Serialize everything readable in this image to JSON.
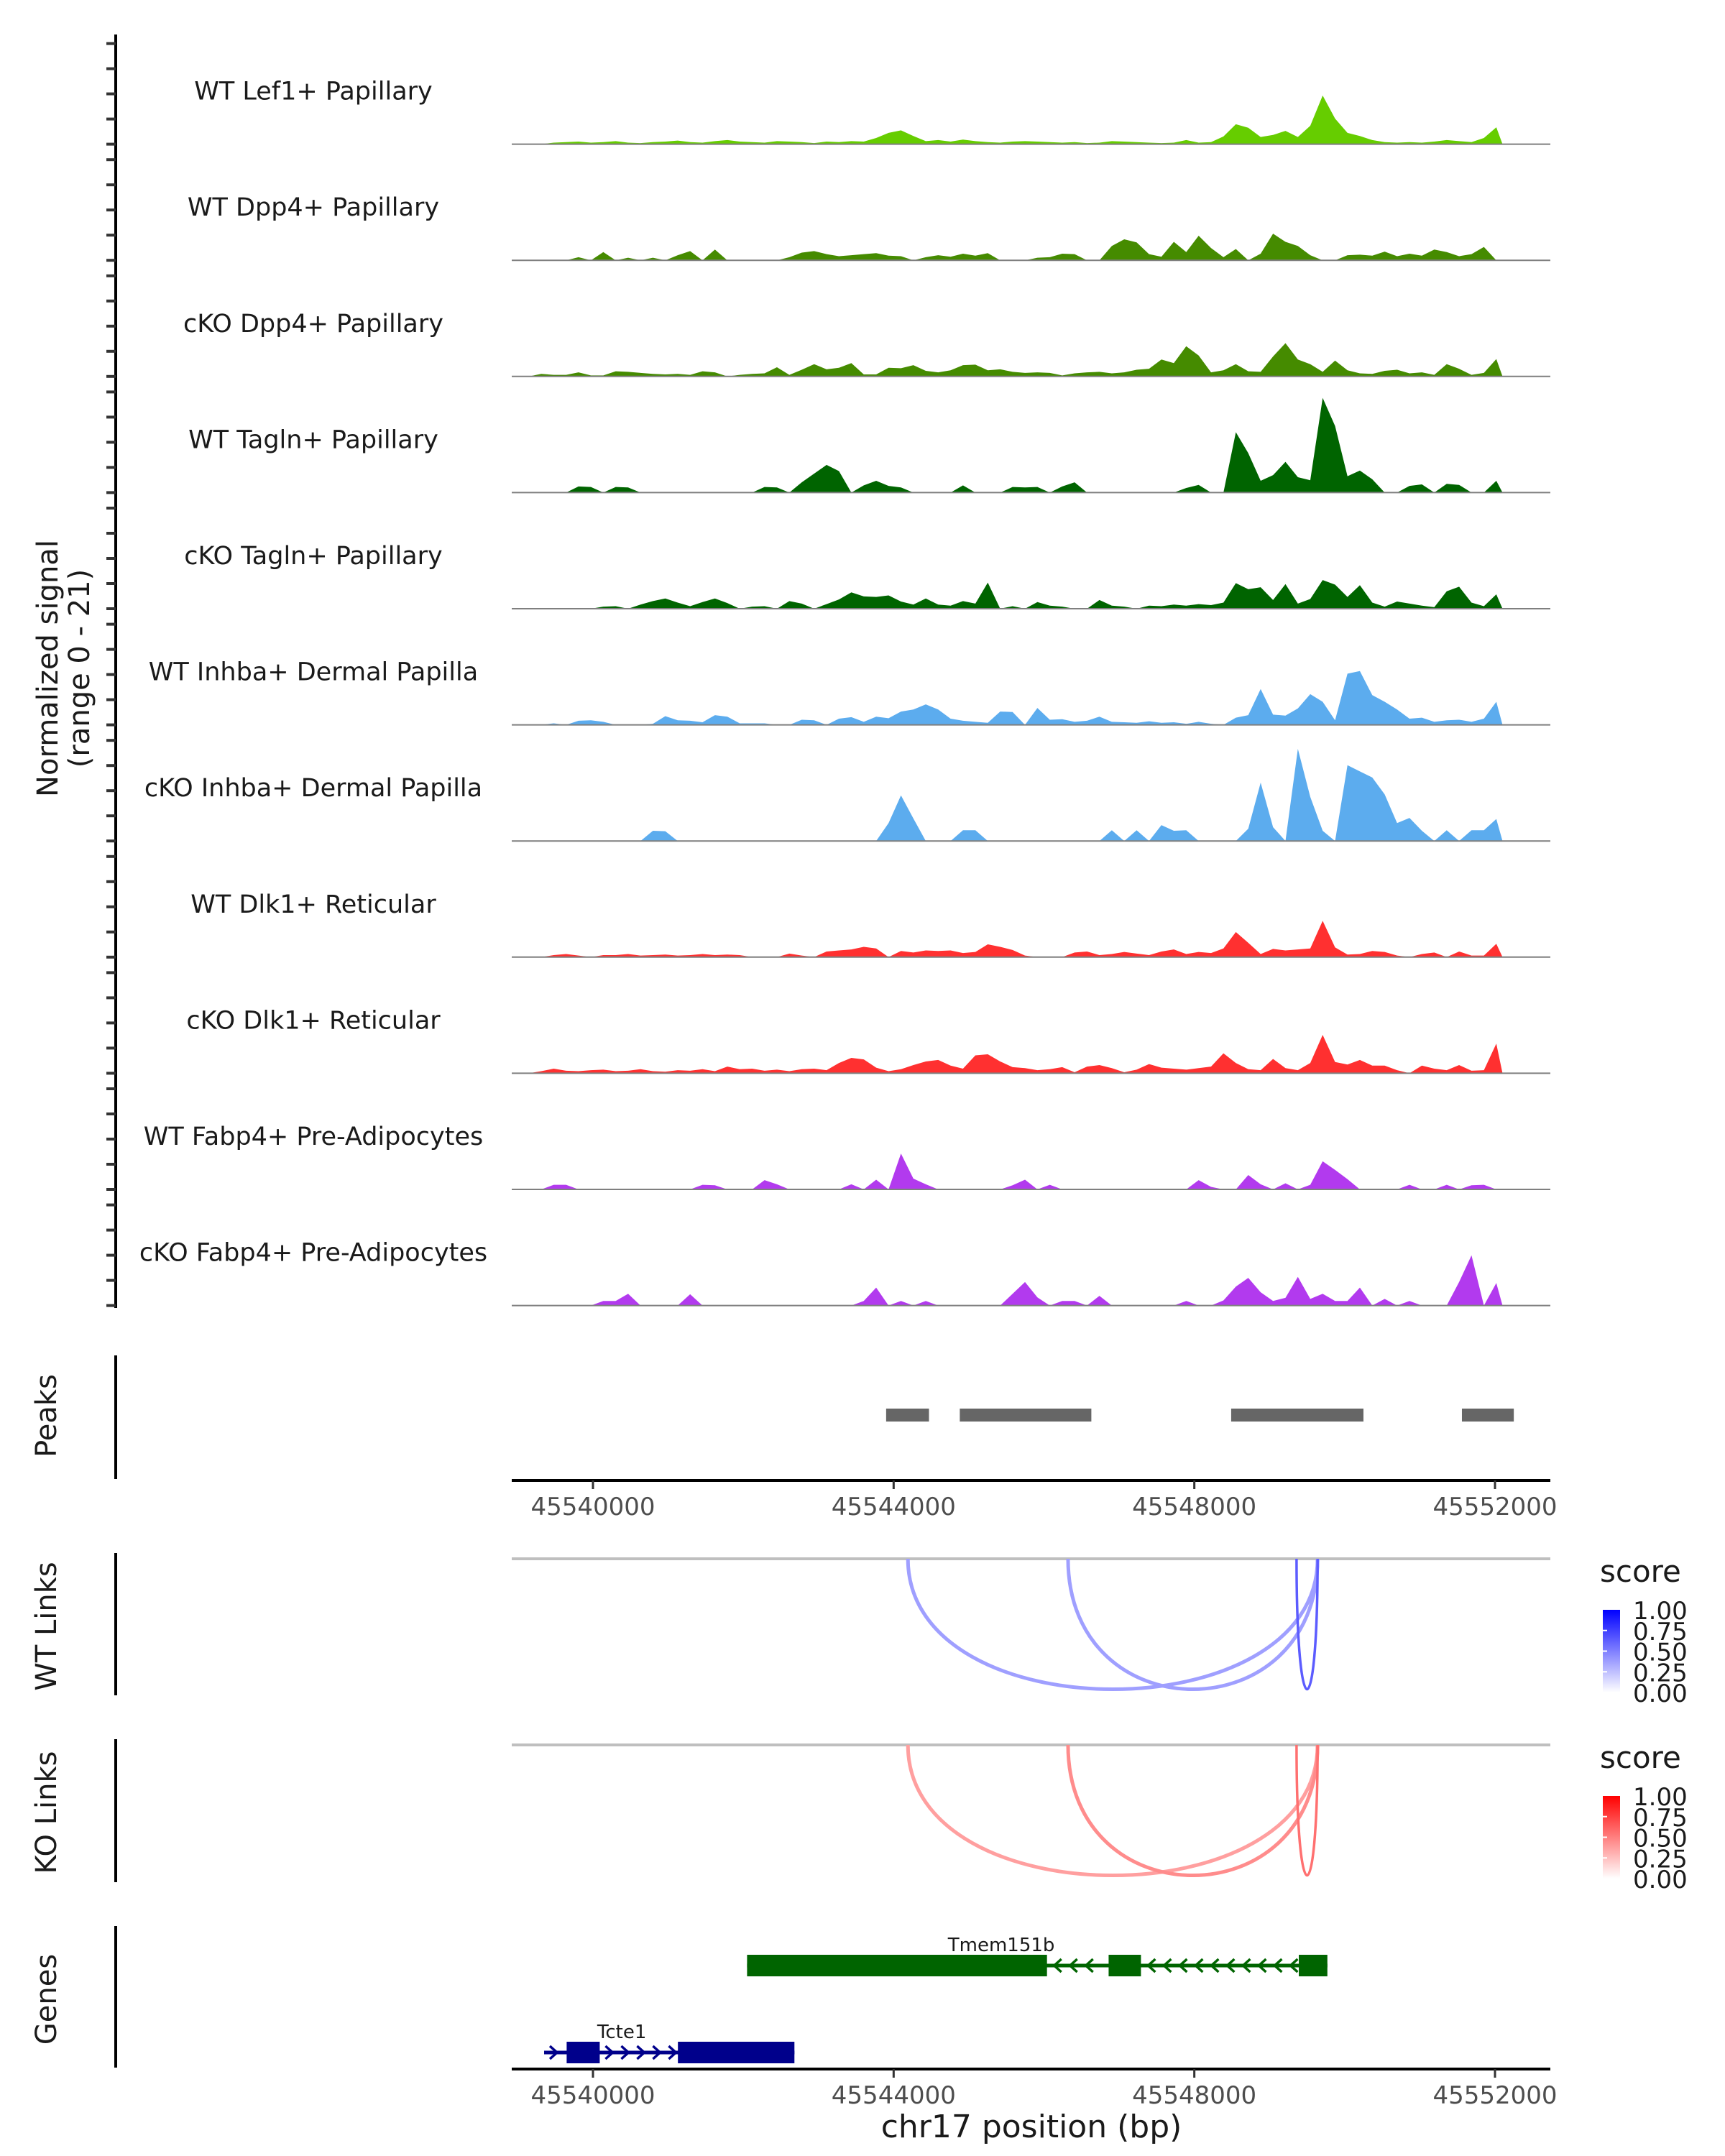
{
  "chart_data": {
    "type": "area",
    "title": "",
    "region": {
      "chrom": "chr17",
      "start": 45538900,
      "end": 45552700
    },
    "bin_size_bp": 165,
    "signal_axis_label": [
      "Normalized signal",
      "(range 0 - 21)"
    ],
    "signal_range": [
      0,
      21
    ],
    "xlabel": "chr17 position (bp)",
    "x_ticks": [
      45540000,
      45544000,
      45548000,
      45552000
    ],
    "x_tick_labels": [
      "45540000",
      "45544000",
      "45548000",
      "45552000"
    ],
    "tracks": [
      {
        "name": "WT Lef1+ Papillary",
        "color": "#66CD00",
        "values": [
          0,
          0,
          0,
          0.3,
          0.4,
          0.5,
          0.3,
          0.4,
          0.6,
          0.3,
          0.2,
          0.4,
          0.5,
          0.7,
          0.4,
          0.3,
          0.6,
          0.8,
          0.5,
          0.4,
          0.3,
          0.6,
          0.5,
          0.4,
          0.2,
          0.5,
          0.4,
          0.6,
          0.5,
          1.2,
          2.2,
          2.7,
          1.6,
          0.6,
          0.8,
          0.5,
          0.9,
          0.6,
          0.4,
          0.3,
          0.5,
          0.6,
          0.5,
          0.4,
          0.3,
          0.4,
          0.2,
          0.3,
          0.6,
          0.5,
          0.4,
          0.3,
          0.2,
          0.3,
          0.8,
          0.3,
          0.4,
          1.5,
          3.9,
          3.2,
          1.4,
          1.8,
          2.6,
          1.4,
          3.6,
          9.5,
          5.0,
          2.2,
          1.6,
          0.8,
          0.4,
          0.3,
          0.4,
          0.3,
          0.5,
          0.8,
          0.6,
          0.4,
          1.2,
          3.3
        ]
      },
      {
        "name": "WT Dpp4+ Papillary",
        "color": "#458B00",
        "values": [
          0,
          0,
          0,
          0,
          0,
          0.6,
          0,
          1.6,
          0,
          0.5,
          0,
          0.5,
          0,
          1.0,
          1.8,
          0,
          2.1,
          0,
          0,
          0,
          0,
          0,
          0.6,
          1.5,
          1.8,
          1.2,
          0.8,
          1.0,
          1.2,
          1.4,
          0.9,
          0.8,
          0,
          0.6,
          1.0,
          0.7,
          1.3,
          0.9,
          1.4,
          0,
          0,
          0,
          0.5,
          0.6,
          1.3,
          1.2,
          0,
          0,
          2.8,
          4.1,
          3.5,
          1.2,
          0.7,
          3.6,
          1.6,
          4.8,
          2.4,
          0.6,
          2.2,
          0,
          1.3,
          5.2,
          3.6,
          2.8,
          1.0,
          0,
          0,
          1.0,
          1.1,
          0.9,
          1.7,
          0.8,
          1.3,
          0.9,
          2.1,
          1.6,
          0.8,
          1.2,
          2.6,
          0
        ]
      },
      {
        "name": "cKO Dpp4+ Papillary",
        "color": "#458B00",
        "values": [
          0,
          0,
          0.5,
          0.3,
          0.3,
          0.8,
          0.2,
          0.2,
          1.0,
          0.9,
          0.7,
          0.5,
          0.4,
          0.5,
          0.3,
          1.0,
          0.8,
          0,
          0.3,
          0.5,
          0.6,
          1.8,
          0.3,
          1.3,
          2.4,
          1.4,
          1.7,
          2.6,
          0.4,
          0.4,
          1.7,
          1.6,
          2.2,
          1.1,
          0.8,
          1.2,
          2.2,
          2.3,
          1.2,
          1.4,
          0.9,
          0.7,
          0.8,
          0.7,
          0.2,
          0.6,
          0.8,
          0.9,
          0.6,
          0.8,
          1.3,
          1.5,
          3.3,
          2.6,
          5.9,
          4.1,
          0.8,
          1.2,
          2.4,
          1.0,
          0.9,
          3.9,
          6.5,
          3.3,
          2.4,
          0.9,
          3.1,
          1.2,
          0.6,
          0.5,
          1.1,
          1.3,
          0.6,
          0.8,
          0.3,
          2.4,
          1.5,
          0.3,
          0.7,
          3.4
        ]
      },
      {
        "name": "WT Tagln+ Papillary",
        "color": "#006400",
        "values": [
          0,
          0,
          0,
          0,
          0,
          1.2,
          1.1,
          0,
          1.1,
          1.0,
          0,
          0,
          0,
          0,
          0,
          0,
          0,
          0,
          0,
          0,
          1.1,
          1.0,
          0,
          2.0,
          3.7,
          5.4,
          4.2,
          0,
          1.4,
          2.3,
          1.3,
          1.0,
          0,
          0,
          0,
          0,
          1.4,
          0,
          0,
          0,
          1.1,
          1.0,
          1.1,
          0,
          1.2,
          2.0,
          0,
          0,
          0,
          0,
          0,
          0,
          0,
          0,
          0.9,
          1.5,
          0,
          0,
          11.8,
          7.7,
          2.3,
          3.4,
          6.0,
          3.0,
          2.4,
          18.5,
          13.0,
          3.2,
          4.3,
          2.6,
          0,
          0,
          1.3,
          1.6,
          0,
          1.7,
          1.5,
          0,
          0,
          2.3
        ]
      },
      {
        "name": "cKO Tagln+ Papillary",
        "color": "#006400",
        "values": [
          0,
          0,
          0,
          0,
          0,
          0,
          0,
          0.4,
          0.5,
          0,
          0.8,
          1.5,
          2.0,
          1.2,
          0.5,
          1.3,
          2.0,
          1.1,
          0,
          0.4,
          0.5,
          0,
          1.5,
          1.0,
          0,
          0.9,
          1.8,
          3.2,
          2.4,
          2.3,
          2.6,
          1.4,
          0.8,
          2.0,
          0.8,
          0.6,
          1.5,
          1.0,
          5.1,
          0,
          0.5,
          0,
          1.3,
          0.6,
          0.4,
          0,
          0,
          1.7,
          0.6,
          0.4,
          0,
          0.6,
          0.5,
          0.8,
          0.6,
          0.9,
          0.7,
          1.2,
          5.0,
          3.8,
          4.2,
          1.7,
          4.8,
          1.0,
          1.9,
          5.6,
          4.7,
          2.3,
          4.6,
          1.2,
          0.4,
          1.4,
          1.0,
          0.6,
          0.3,
          3.4,
          4.3,
          1.2,
          0.5,
          2.8
        ]
      },
      {
        "name": "WT Inhba+ Dermal Papilla",
        "color": "#5CACEE",
        "values": [
          0,
          0,
          0,
          0.3,
          0,
          0.8,
          0.9,
          0.6,
          0,
          0,
          0,
          0.2,
          1.7,
          0.9,
          0.8,
          0.5,
          1.9,
          1.6,
          0.3,
          0.3,
          0.3,
          0,
          0,
          1.0,
          0.9,
          0,
          1.2,
          1.5,
          0.6,
          1.6,
          1.3,
          2.6,
          3.0,
          4.0,
          3.0,
          1.2,
          0.8,
          0.6,
          0.4,
          2.6,
          2.5,
          0,
          3.3,
          1.0,
          1.1,
          0.6,
          0.8,
          1.6,
          0.6,
          0.5,
          0.4,
          0.7,
          0.4,
          0.5,
          0.2,
          0.6,
          0.2,
          0,
          1.4,
          1.9,
          7.0,
          2.0,
          1.8,
          3.2,
          6.0,
          4.5,
          0.9,
          10.0,
          10.5,
          5.8,
          4.5,
          3.0,
          1.2,
          1.4,
          0.6,
          0.9,
          1.0,
          0.6,
          1.2,
          4.5
        ]
      },
      {
        "name": "cKO Inhba+ Dermal Papilla",
        "color": "#5CACEE",
        "values": [
          0,
          0,
          0,
          0,
          0,
          0,
          0,
          0,
          0,
          0,
          0,
          2.0,
          1.9,
          0,
          0,
          0,
          0,
          0,
          0,
          0,
          0,
          0,
          0,
          0,
          0,
          0,
          0,
          0,
          0,
          0,
          3.5,
          8.9,
          4.4,
          0,
          0,
          0,
          2.1,
          2.1,
          0,
          0,
          0,
          0,
          0,
          0,
          0,
          0,
          0,
          0,
          2.1,
          0,
          2.1,
          0,
          3.1,
          2.0,
          2.1,
          0,
          0,
          0,
          0,
          2.4,
          11.4,
          2.7,
          0,
          18.0,
          8.6,
          2.0,
          0,
          14.8,
          13.6,
          12.4,
          9.1,
          3.5,
          4.5,
          2.0,
          0,
          2.1,
          0,
          2.1,
          2.1,
          4.3
        ]
      },
      {
        "name": "WT Dlk1+ Reticular",
        "color": "#FF3030",
        "values": [
          0,
          0,
          0,
          0.4,
          0.6,
          0.3,
          0,
          0.4,
          0.4,
          0.6,
          0.3,
          0.4,
          0.5,
          0.3,
          0.4,
          0.6,
          0.4,
          0.5,
          0.4,
          0,
          0,
          0,
          0.7,
          0.3,
          0,
          1.1,
          1.3,
          1.5,
          2.0,
          1.7,
          0,
          1.2,
          0.9,
          1.3,
          1.2,
          1.3,
          0.8,
          1.0,
          2.5,
          2.0,
          1.4,
          0.3,
          0,
          0,
          0,
          0.9,
          1.1,
          0.4,
          0.6,
          1.0,
          0.7,
          0.4,
          1.1,
          1.5,
          0.6,
          1.0,
          0.8,
          1.7,
          4.9,
          2.8,
          0.6,
          1.6,
          1.3,
          1.5,
          1.7,
          7.1,
          1.9,
          0.5,
          0.6,
          1.2,
          1.0,
          0.3,
          0,
          0.6,
          0.9,
          0,
          1.1,
          0.3,
          0.3,
          2.6
        ]
      },
      {
        "name": "cKO Dlk1+ Reticular",
        "color": "#FF3030",
        "values": [
          0,
          0,
          0.4,
          0.9,
          0.5,
          0.4,
          0.6,
          0.7,
          0.4,
          0.5,
          0.8,
          0.4,
          0.3,
          0.6,
          0.5,
          0.8,
          0.4,
          1.3,
          0.8,
          0.9,
          0.5,
          0.7,
          0.4,
          0.8,
          0.9,
          0.6,
          2.0,
          3.0,
          2.7,
          1.1,
          0.4,
          0.8,
          1.6,
          2.3,
          2.6,
          1.5,
          0.9,
          3.5,
          3.7,
          2.3,
          1.2,
          1.0,
          0.6,
          0.8,
          1.2,
          0.2,
          1.3,
          1.6,
          1.0,
          0.2,
          0.7,
          1.8,
          1.1,
          0.9,
          0.7,
          1.0,
          1.3,
          3.9,
          2.0,
          0.8,
          0.6,
          2.8,
          1.0,
          0.6,
          2.0,
          7.5,
          2.2,
          1.7,
          2.6,
          1.5,
          1.5,
          0.6,
          0,
          1.5,
          0.9,
          0.6,
          1.6,
          0.5,
          0.6,
          5.8
        ]
      },
      {
        "name": "WT Fabp4+ Pre-Adipocytes",
        "color": "#B23AEE",
        "values": [
          0,
          0,
          0,
          0.9,
          0.9,
          0,
          0,
          0,
          0,
          0,
          0,
          0,
          0,
          0,
          0,
          0.9,
          0.8,
          0,
          0,
          0,
          1.8,
          1.0,
          0,
          0,
          0,
          0,
          0,
          1.0,
          0,
          1.9,
          0,
          7.0,
          2.1,
          1.0,
          0,
          0,
          0,
          0,
          0,
          0,
          0.8,
          1.9,
          0,
          0.9,
          0,
          0,
          0,
          0,
          0,
          0,
          0,
          0,
          0,
          0,
          0,
          1.8,
          0.5,
          0,
          0,
          2.8,
          1.0,
          0,
          1.2,
          0,
          0.9,
          5.5,
          3.8,
          2.0,
          0,
          0,
          0,
          0,
          0.9,
          0,
          0,
          0.9,
          0,
          0.8,
          0.9,
          0
        ]
      },
      {
        "name": "cKO Fabp4+ Pre-Adipocytes",
        "color": "#B23AEE",
        "values": [
          0,
          0,
          0,
          0,
          0,
          0,
          0,
          0.9,
          0.9,
          2.3,
          0,
          0,
          0,
          0,
          2.2,
          0,
          0,
          0,
          0,
          0,
          0,
          0,
          0,
          0,
          0,
          0,
          0,
          0,
          0.9,
          3.5,
          0,
          0.9,
          0,
          0.9,
          0,
          0,
          0,
          0,
          0,
          0,
          2.3,
          4.6,
          1.6,
          0,
          0.9,
          0.9,
          0,
          1.9,
          0,
          0,
          0,
          0,
          0,
          0,
          0.9,
          0,
          0,
          1.0,
          3.7,
          5.4,
          2.6,
          0.9,
          1.5,
          5.6,
          1.3,
          2.3,
          0.9,
          0.9,
          3.5,
          0,
          1.3,
          0,
          0.9,
          0,
          0,
          0,
          4.6,
          9.8,
          0,
          4.4
        ]
      }
    ],
    "peaks": {
      "label": "Peaks",
      "color": "#666666",
      "intervals": [
        [
          45543900,
          45544470
        ],
        [
          45544880,
          45546630
        ],
        [
          45548490,
          45550250
        ],
        [
          45551560,
          45552250
        ]
      ]
    },
    "links": [
      {
        "label": "WT Links",
        "legend_title": "score",
        "low_color": "#FFFFFF",
        "high_color": "#0000FF",
        "legend_ticks": [
          "1.00",
          "0.75",
          "0.50",
          "0.25",
          "0.00"
        ],
        "arcs": [
          {
            "start": 45544190,
            "end": 45549640,
            "score": 0.3
          },
          {
            "start": 45546320,
            "end": 45549640,
            "score": 0.3
          },
          {
            "start": 45549360,
            "end": 45549640,
            "score": 0.65
          }
        ]
      },
      {
        "label": "KO Links",
        "legend_title": "score",
        "low_color": "#FFFFFF",
        "high_color": "#FF0000",
        "legend_ticks": [
          "1.00",
          "0.75",
          "0.50",
          "0.25",
          "0.00"
        ],
        "arcs": [
          {
            "start": 45544190,
            "end": 45549640,
            "score": 0.3
          },
          {
            "start": 45546320,
            "end": 45549640,
            "score": 0.4
          },
          {
            "start": 45549360,
            "end": 45549640,
            "score": 0.55
          }
        ]
      }
    ],
    "genes": {
      "label": "Genes",
      "items": [
        {
          "name": "Tmem151b",
          "strand": "-",
          "color": "#006400",
          "start": 45542050,
          "end": 45549770,
          "exons": [
            [
              45542050,
              45546040
            ],
            [
              45546860,
              45547290
            ],
            [
              45549390,
              45549770
            ]
          ],
          "row": 0
        },
        {
          "name": "Tcte1",
          "strand": "+",
          "color": "#00008B",
          "start": 45539350,
          "end": 45542680,
          "exons": [
            [
              45539650,
              45540090
            ],
            [
              45541130,
              45542680
            ]
          ],
          "row": 1
        }
      ]
    }
  }
}
